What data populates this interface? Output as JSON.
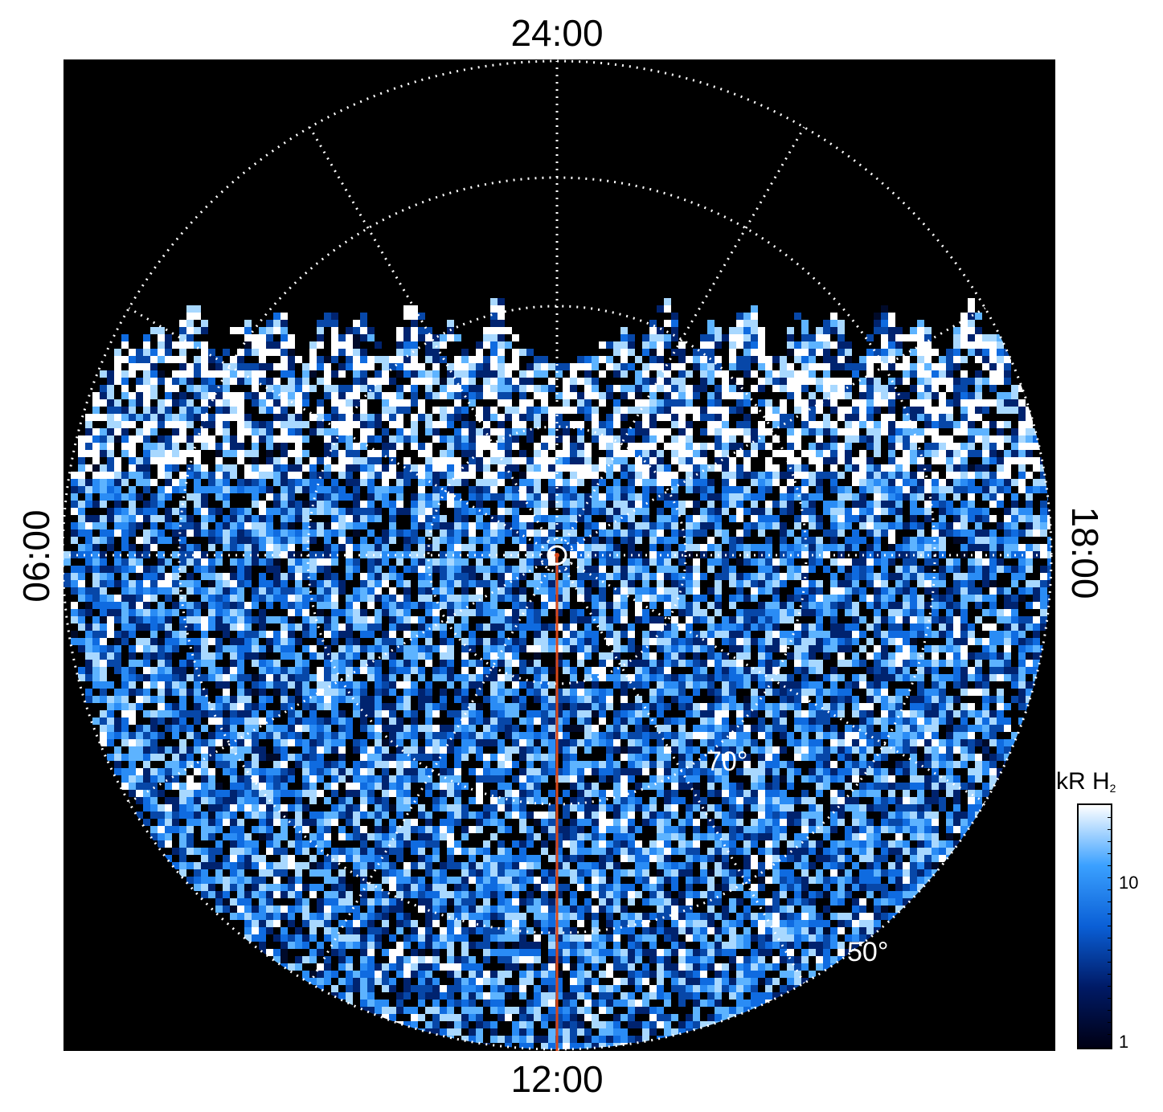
{
  "time_labels": {
    "top": "24:00",
    "bottom": "12:00",
    "left": "06:00",
    "right": "18:00"
  },
  "latitude_labels": [
    "70°",
    "50°"
  ],
  "colorbar": {
    "unit": "kR H",
    "unit_sub": "2",
    "ticks": [
      "10",
      "1"
    ],
    "colors": [
      "#000014",
      "#001a66",
      "#0a5fd6",
      "#3aa0ff",
      "#ffffff"
    ]
  },
  "colors": {
    "background": "#000000",
    "grid": "#ffffff",
    "meridian": "#d9481a"
  }
}
